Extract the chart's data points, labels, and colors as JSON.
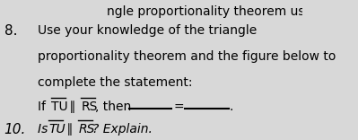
{
  "background_color": "#d8d8d8",
  "text_color": "#000000",
  "number8": "8.",
  "number10": "10.",
  "line1": "Use your knowledge of the triangle",
  "line2": "proportionality theorem and the figure below to",
  "line3": "complete the statement:",
  "header_partial": "ngle proportionality theorem using th",
  "fontsize_main": 10.0,
  "fontsize_header": 10.0,
  "fontsize_number": 11.0,
  "parallel": "∥"
}
